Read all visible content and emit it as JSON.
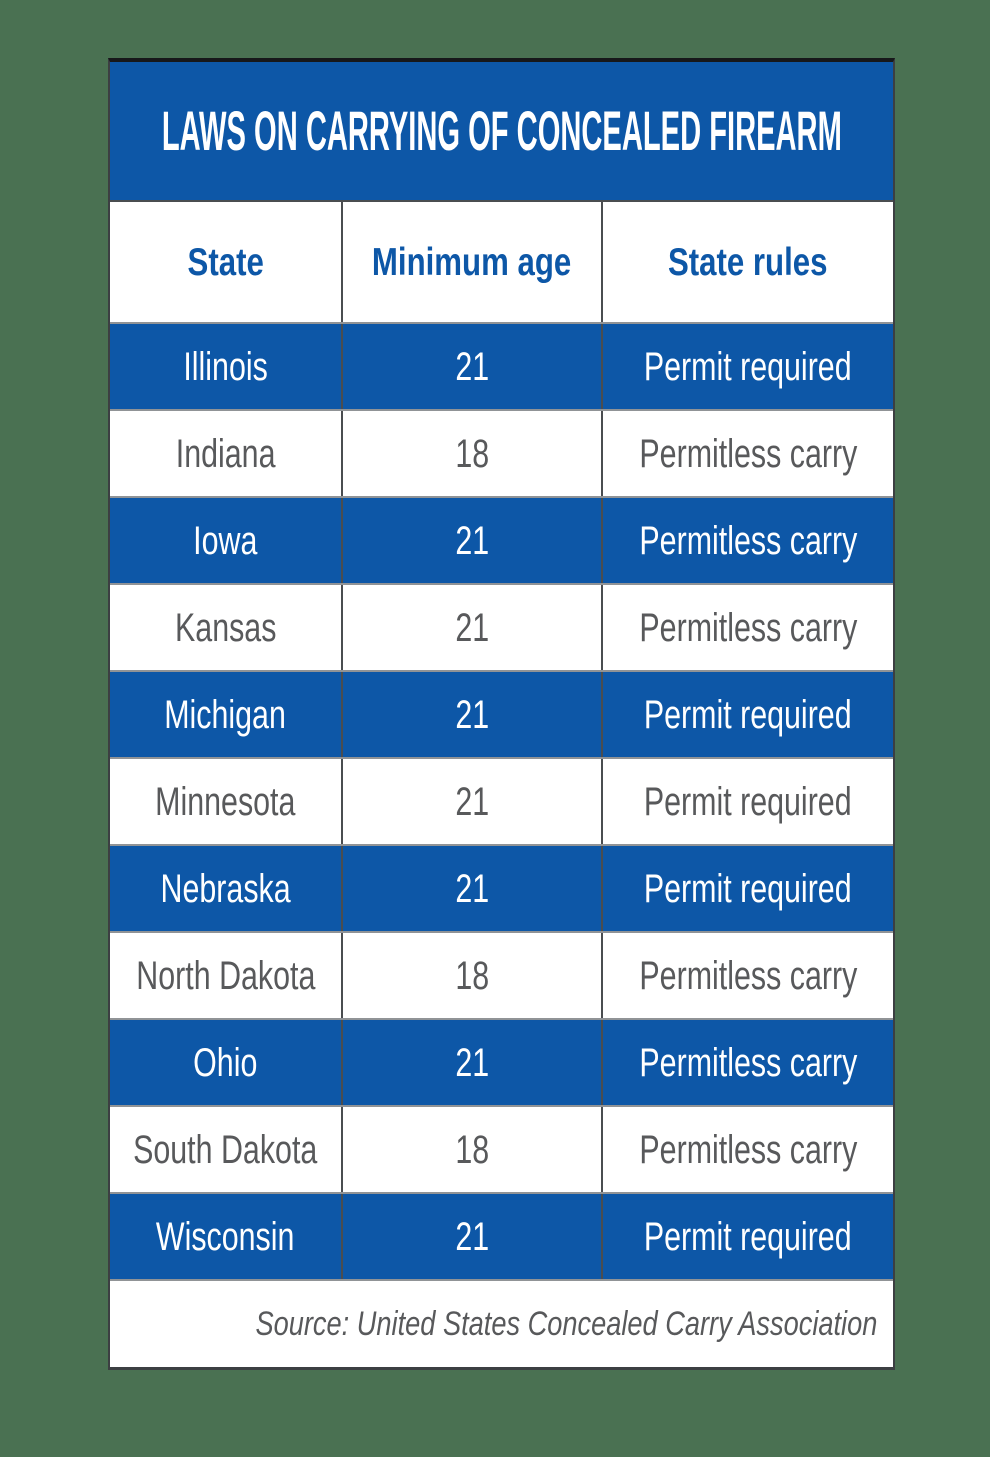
{
  "title": "LAWS ON CARRYING OF CONCEALED FIREARM",
  "table": {
    "columns": [
      "State",
      "Minimum age",
      "State rules"
    ],
    "rows": [
      {
        "state": "Illinois",
        "age": "21",
        "rules": "Permit required"
      },
      {
        "state": "Indiana",
        "age": "18",
        "rules": "Permitless carry"
      },
      {
        "state": "Iowa",
        "age": "21",
        "rules": "Permitless carry"
      },
      {
        "state": "Kansas",
        "age": "21",
        "rules": "Permitless carry"
      },
      {
        "state": "Michigan",
        "age": "21",
        "rules": "Permit required"
      },
      {
        "state": "Minnesota",
        "age": "21",
        "rules": "Permit required"
      },
      {
        "state": "Nebraska",
        "age": "21",
        "rules": "Permit required"
      },
      {
        "state": "North Dakota",
        "age": "18",
        "rules": "Permitless carry"
      },
      {
        "state": "Ohio",
        "age": "21",
        "rules": "Permitless carry"
      },
      {
        "state": "South Dakota",
        "age": "18",
        "rules": "Permitless carry"
      },
      {
        "state": "Wisconsin",
        "age": "21",
        "rules": "Permit required"
      }
    ]
  },
  "source": "Source: United States Concealed Carry Association",
  "colors": {
    "blue": "#0d57a7",
    "green_bg": "#4a7152",
    "text_gray": "#58595b",
    "white": "#ffffff"
  },
  "chart_data": {
    "type": "table",
    "title": "LAWS ON CARRYING OF CONCEALED FIREARM",
    "columns": [
      "State",
      "Minimum age",
      "State rules"
    ],
    "rows": [
      [
        "Illinois",
        21,
        "Permit required"
      ],
      [
        "Indiana",
        18,
        "Permitless carry"
      ],
      [
        "Iowa",
        21,
        "Permitless carry"
      ],
      [
        "Kansas",
        21,
        "Permitless carry"
      ],
      [
        "Michigan",
        21,
        "Permit required"
      ],
      [
        "Minnesota",
        21,
        "Permit required"
      ],
      [
        "Nebraska",
        21,
        "Permit required"
      ],
      [
        "North Dakota",
        18,
        "Permitless carry"
      ],
      [
        "Ohio",
        21,
        "Permitless carry"
      ],
      [
        "South Dakota",
        18,
        "Permitless carry"
      ],
      [
        "Wisconsin",
        21,
        "Permit required"
      ]
    ],
    "source": "Source: United States Concealed Carry Association",
    "layout_hints": {
      "striped_rows": "odd rows blue with white text, even rows white with gray text",
      "header_text_color": "#0d57a7",
      "row_accent_color": "#0d57a7",
      "background": "#4a7152"
    }
  }
}
